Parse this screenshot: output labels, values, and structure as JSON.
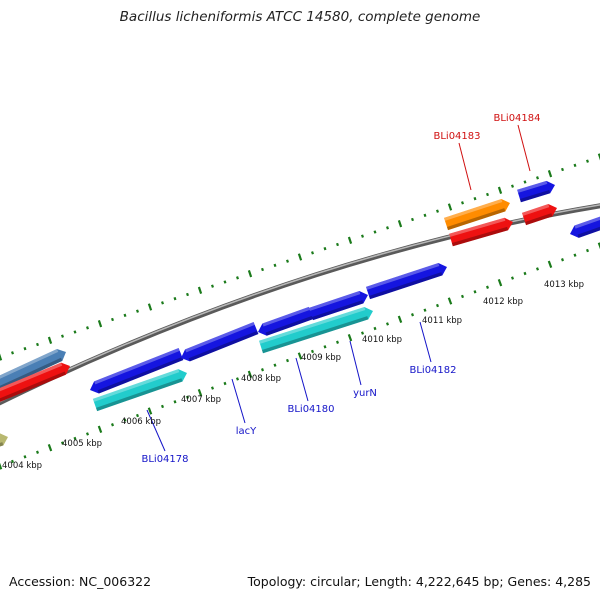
{
  "title": "Bacillus licheniformis ATCC 14580, complete genome",
  "footer": {
    "accession": "Accession: NC_006322",
    "stats": "Topology: circular; Length: 4,222,645 bp; Genes: 4,285"
  },
  "colors": {
    "backbone": "#8c8c8c",
    "ticks": "#1a7a1a",
    "tick_label": "#111111",
    "gene_label_blue": "#1414c8",
    "gene_label_red": "#d01010"
  },
  "tick_labels": [
    "4004 kbp",
    "4005 kbp",
    "4006 kbp",
    "4007 kbp",
    "4008 kbp",
    "4009 kbp",
    "4010 kbp",
    "4011 kbp",
    "4012 kbp",
    "4013 kbp"
  ],
  "gene_labels": [
    "BLi04178",
    "lacY",
    "BLi04180",
    "yurN",
    "BLi04182",
    "BLi04183",
    "BLi04184"
  ],
  "features": [
    {
      "color": "#4a7fb5",
      "strand": "+"
    },
    {
      "color": "#ee1111",
      "strand": "+"
    },
    {
      "color": "#1515e0",
      "strand": "-"
    },
    {
      "color": "#1515e0",
      "strand": "-"
    },
    {
      "color": "#1515e0",
      "strand": "-"
    },
    {
      "color": "#1515e0",
      "strand": "+"
    },
    {
      "color": "#1515e0",
      "strand": "+"
    },
    {
      "color": "#22cccc",
      "strand": "+"
    },
    {
      "color": "#22cccc",
      "strand": "+"
    },
    {
      "color": "#ff8c00",
      "strand": "+"
    },
    {
      "color": "#ee1111",
      "strand": "+"
    },
    {
      "color": "#1515e0",
      "strand": "+"
    },
    {
      "color": "#ee1111",
      "strand": "+"
    },
    {
      "color": "#1515e0",
      "strand": "-"
    },
    {
      "color": "#b8b870",
      "strand": "+"
    }
  ]
}
